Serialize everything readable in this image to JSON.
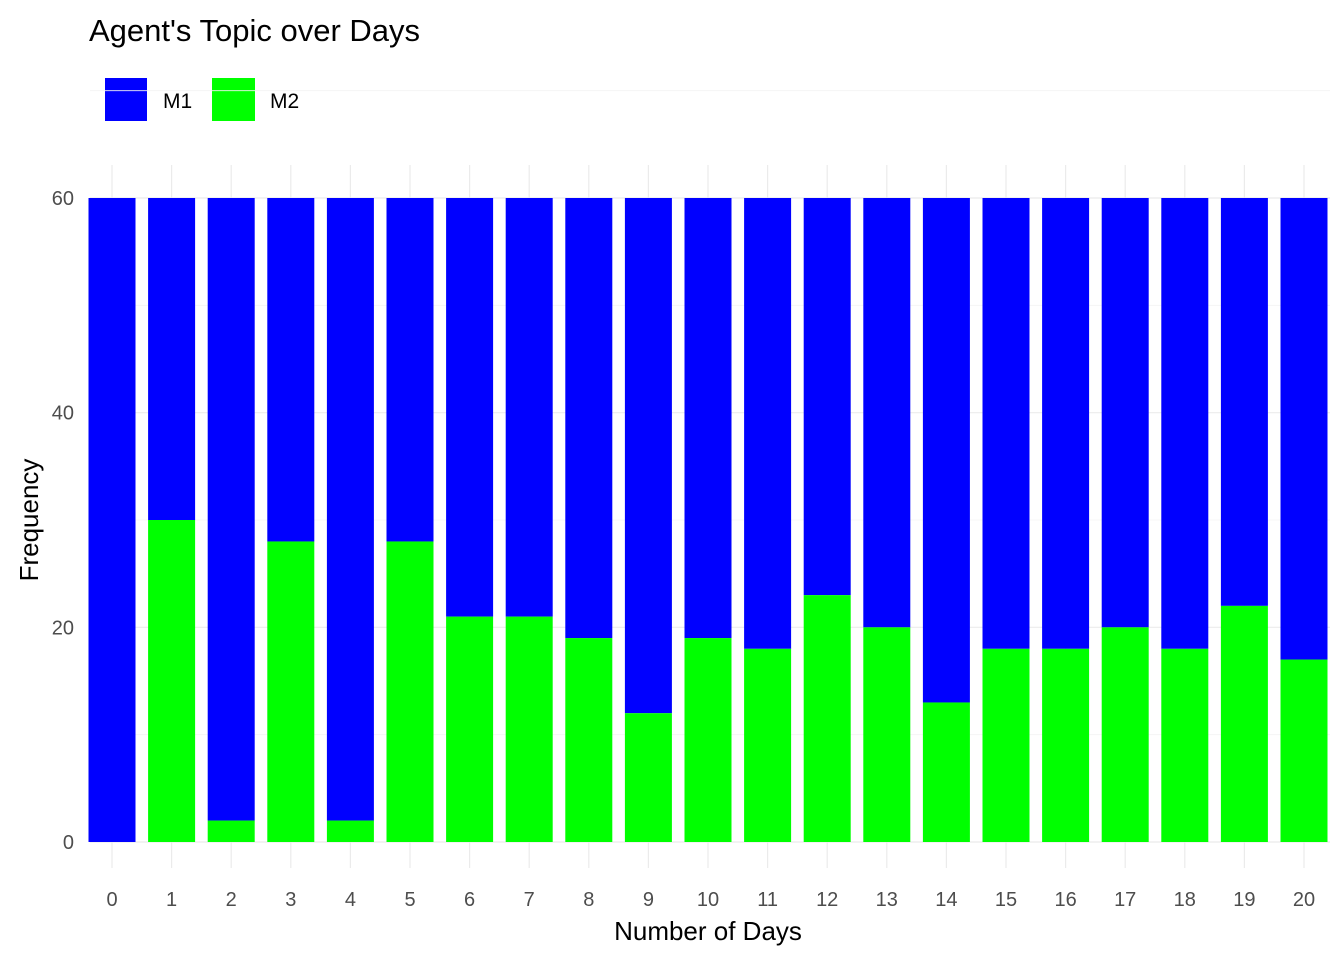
{
  "chart_data": {
    "type": "bar",
    "stacked": true,
    "title": "Agent's Topic over Days",
    "xlabel": "Number of Days",
    "ylabel": "Frequency",
    "categories": [
      "0",
      "1",
      "2",
      "3",
      "4",
      "5",
      "6",
      "7",
      "8",
      "9",
      "10",
      "11",
      "12",
      "13",
      "14",
      "15",
      "16",
      "17",
      "18",
      "19",
      "20"
    ],
    "series": [
      {
        "name": "M1",
        "color": "#0000FF",
        "values": [
          60,
          30,
          58,
          32,
          58,
          32,
          39,
          39,
          41,
          48,
          41,
          42,
          37,
          40,
          47,
          42,
          42,
          40,
          42,
          38,
          43
        ]
      },
      {
        "name": "M2",
        "color": "#00FF00",
        "values": [
          0,
          30,
          2,
          28,
          2,
          28,
          21,
          21,
          19,
          12,
          19,
          18,
          23,
          20,
          13,
          18,
          18,
          20,
          18,
          22,
          17
        ]
      }
    ],
    "y_ticks": [
      "0",
      "20",
      "40",
      "60"
    ],
    "ylim": [
      0,
      60
    ],
    "grid": true,
    "legend_position": "top-left"
  }
}
